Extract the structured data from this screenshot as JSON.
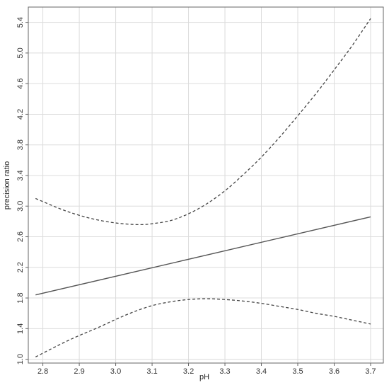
{
  "chart_data": {
    "type": "line",
    "title": "",
    "xlabel": "pH",
    "ylabel": "precision ratio",
    "xlim": [
      2.76,
      3.735
    ],
    "ylim": [
      0.95,
      5.6
    ],
    "x_ticks": [
      2.8,
      2.9,
      3.0,
      3.1,
      3.2,
      3.3,
      3.4,
      3.5,
      3.6,
      3.7
    ],
    "x_tick_labels": [
      "2.8",
      "2.9",
      "3.0",
      "3.1",
      "3.2",
      "3.3",
      "3.4",
      "3.5",
      "3.6",
      "3.7"
    ],
    "y_ticks": [
      1.0,
      1.4,
      1.8,
      2.2,
      2.6,
      3.0,
      3.4,
      3.8,
      4.2,
      4.6,
      5.0,
      5.4
    ],
    "y_tick_labels": [
      "1.0",
      "1.4",
      "1.8",
      "2.2",
      "2.6",
      "3.0",
      "3.4",
      "3.8",
      "4.2",
      "4.6",
      "5.0",
      "5.4"
    ],
    "grid": true,
    "series": [
      {
        "style": "solid",
        "color": "#555555",
        "x": [
          2.78,
          3.7
        ],
        "y": [
          1.84,
          2.86
        ]
      },
      {
        "style": "dashed",
        "color": "#444444",
        "x": [
          2.78,
          2.85,
          2.9,
          2.95,
          3.0,
          3.05,
          3.08,
          3.1,
          3.15,
          3.2,
          3.25,
          3.3,
          3.35,
          3.4,
          3.45,
          3.5,
          3.55,
          3.6,
          3.65,
          3.7
        ],
        "y": [
          3.1,
          2.96,
          2.88,
          2.82,
          2.78,
          2.76,
          2.76,
          2.77,
          2.81,
          2.9,
          3.03,
          3.2,
          3.41,
          3.64,
          3.9,
          4.18,
          4.47,
          4.78,
          5.1,
          5.45
        ]
      },
      {
        "style": "dashed",
        "color": "#444444",
        "x": [
          2.78,
          2.85,
          2.9,
          2.95,
          3.0,
          3.05,
          3.1,
          3.15,
          3.2,
          3.25,
          3.3,
          3.35,
          3.4,
          3.45,
          3.5,
          3.55,
          3.6,
          3.65,
          3.7
        ],
        "y": [
          1.03,
          1.2,
          1.31,
          1.41,
          1.52,
          1.62,
          1.7,
          1.75,
          1.78,
          1.79,
          1.78,
          1.76,
          1.73,
          1.69,
          1.65,
          1.6,
          1.56,
          1.51,
          1.46
        ]
      }
    ]
  }
}
